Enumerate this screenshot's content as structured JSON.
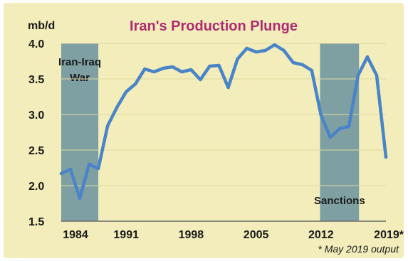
{
  "chart_data": {
    "type": "line",
    "title": "Iran's Production Plunge",
    "unit_label": "mb/d",
    "ylim": [
      1.5,
      4.0
    ],
    "y_ticks": [
      "1.5",
      "2.0",
      "2.5",
      "3.0",
      "3.5",
      "4.0"
    ],
    "x_ticks": [
      "1984",
      "1991",
      "1998",
      "2005",
      "2012",
      "2019*"
    ],
    "footnote": "* May 2019 output",
    "grid": true,
    "series": [
      {
        "color": "#4a84c8",
        "points": [
          [
            1984,
            2.17
          ],
          [
            1985,
            2.23
          ],
          [
            1986,
            1.82
          ],
          [
            1987,
            2.3
          ],
          [
            1988,
            2.24
          ],
          [
            1989,
            2.84
          ],
          [
            1990,
            3.1
          ],
          [
            1991,
            3.32
          ],
          [
            1992,
            3.43
          ],
          [
            1993,
            3.64
          ],
          [
            1994,
            3.6
          ],
          [
            1995,
            3.65
          ],
          [
            1996,
            3.67
          ],
          [
            1997,
            3.6
          ],
          [
            1998,
            3.63
          ],
          [
            1999,
            3.49
          ],
          [
            2000,
            3.68
          ],
          [
            2001,
            3.69
          ],
          [
            2002,
            3.38
          ],
          [
            2003,
            3.78
          ],
          [
            2004,
            3.93
          ],
          [
            2005,
            3.88
          ],
          [
            2006,
            3.9
          ],
          [
            2007,
            3.98
          ],
          [
            2008,
            3.9
          ],
          [
            2009,
            3.73
          ],
          [
            2010,
            3.7
          ],
          [
            2011,
            3.62
          ],
          [
            2012,
            2.99
          ],
          [
            2013,
            2.68
          ],
          [
            2014,
            2.8
          ],
          [
            2015,
            2.83
          ],
          [
            2016,
            3.55
          ],
          [
            2017,
            3.81
          ],
          [
            2018,
            3.55
          ],
          [
            2019,
            2.4
          ]
        ]
      }
    ],
    "shaded_periods": [
      {
        "label_lines": [
          "Iran-Iraq",
          "War"
        ],
        "from": 1984,
        "to": 1988,
        "color": "#7ea0a3"
      },
      {
        "label_lines": [
          "Sanctions"
        ],
        "from": 2011.9,
        "to": 2016.1,
        "color": "#7ea0a3"
      }
    ]
  }
}
